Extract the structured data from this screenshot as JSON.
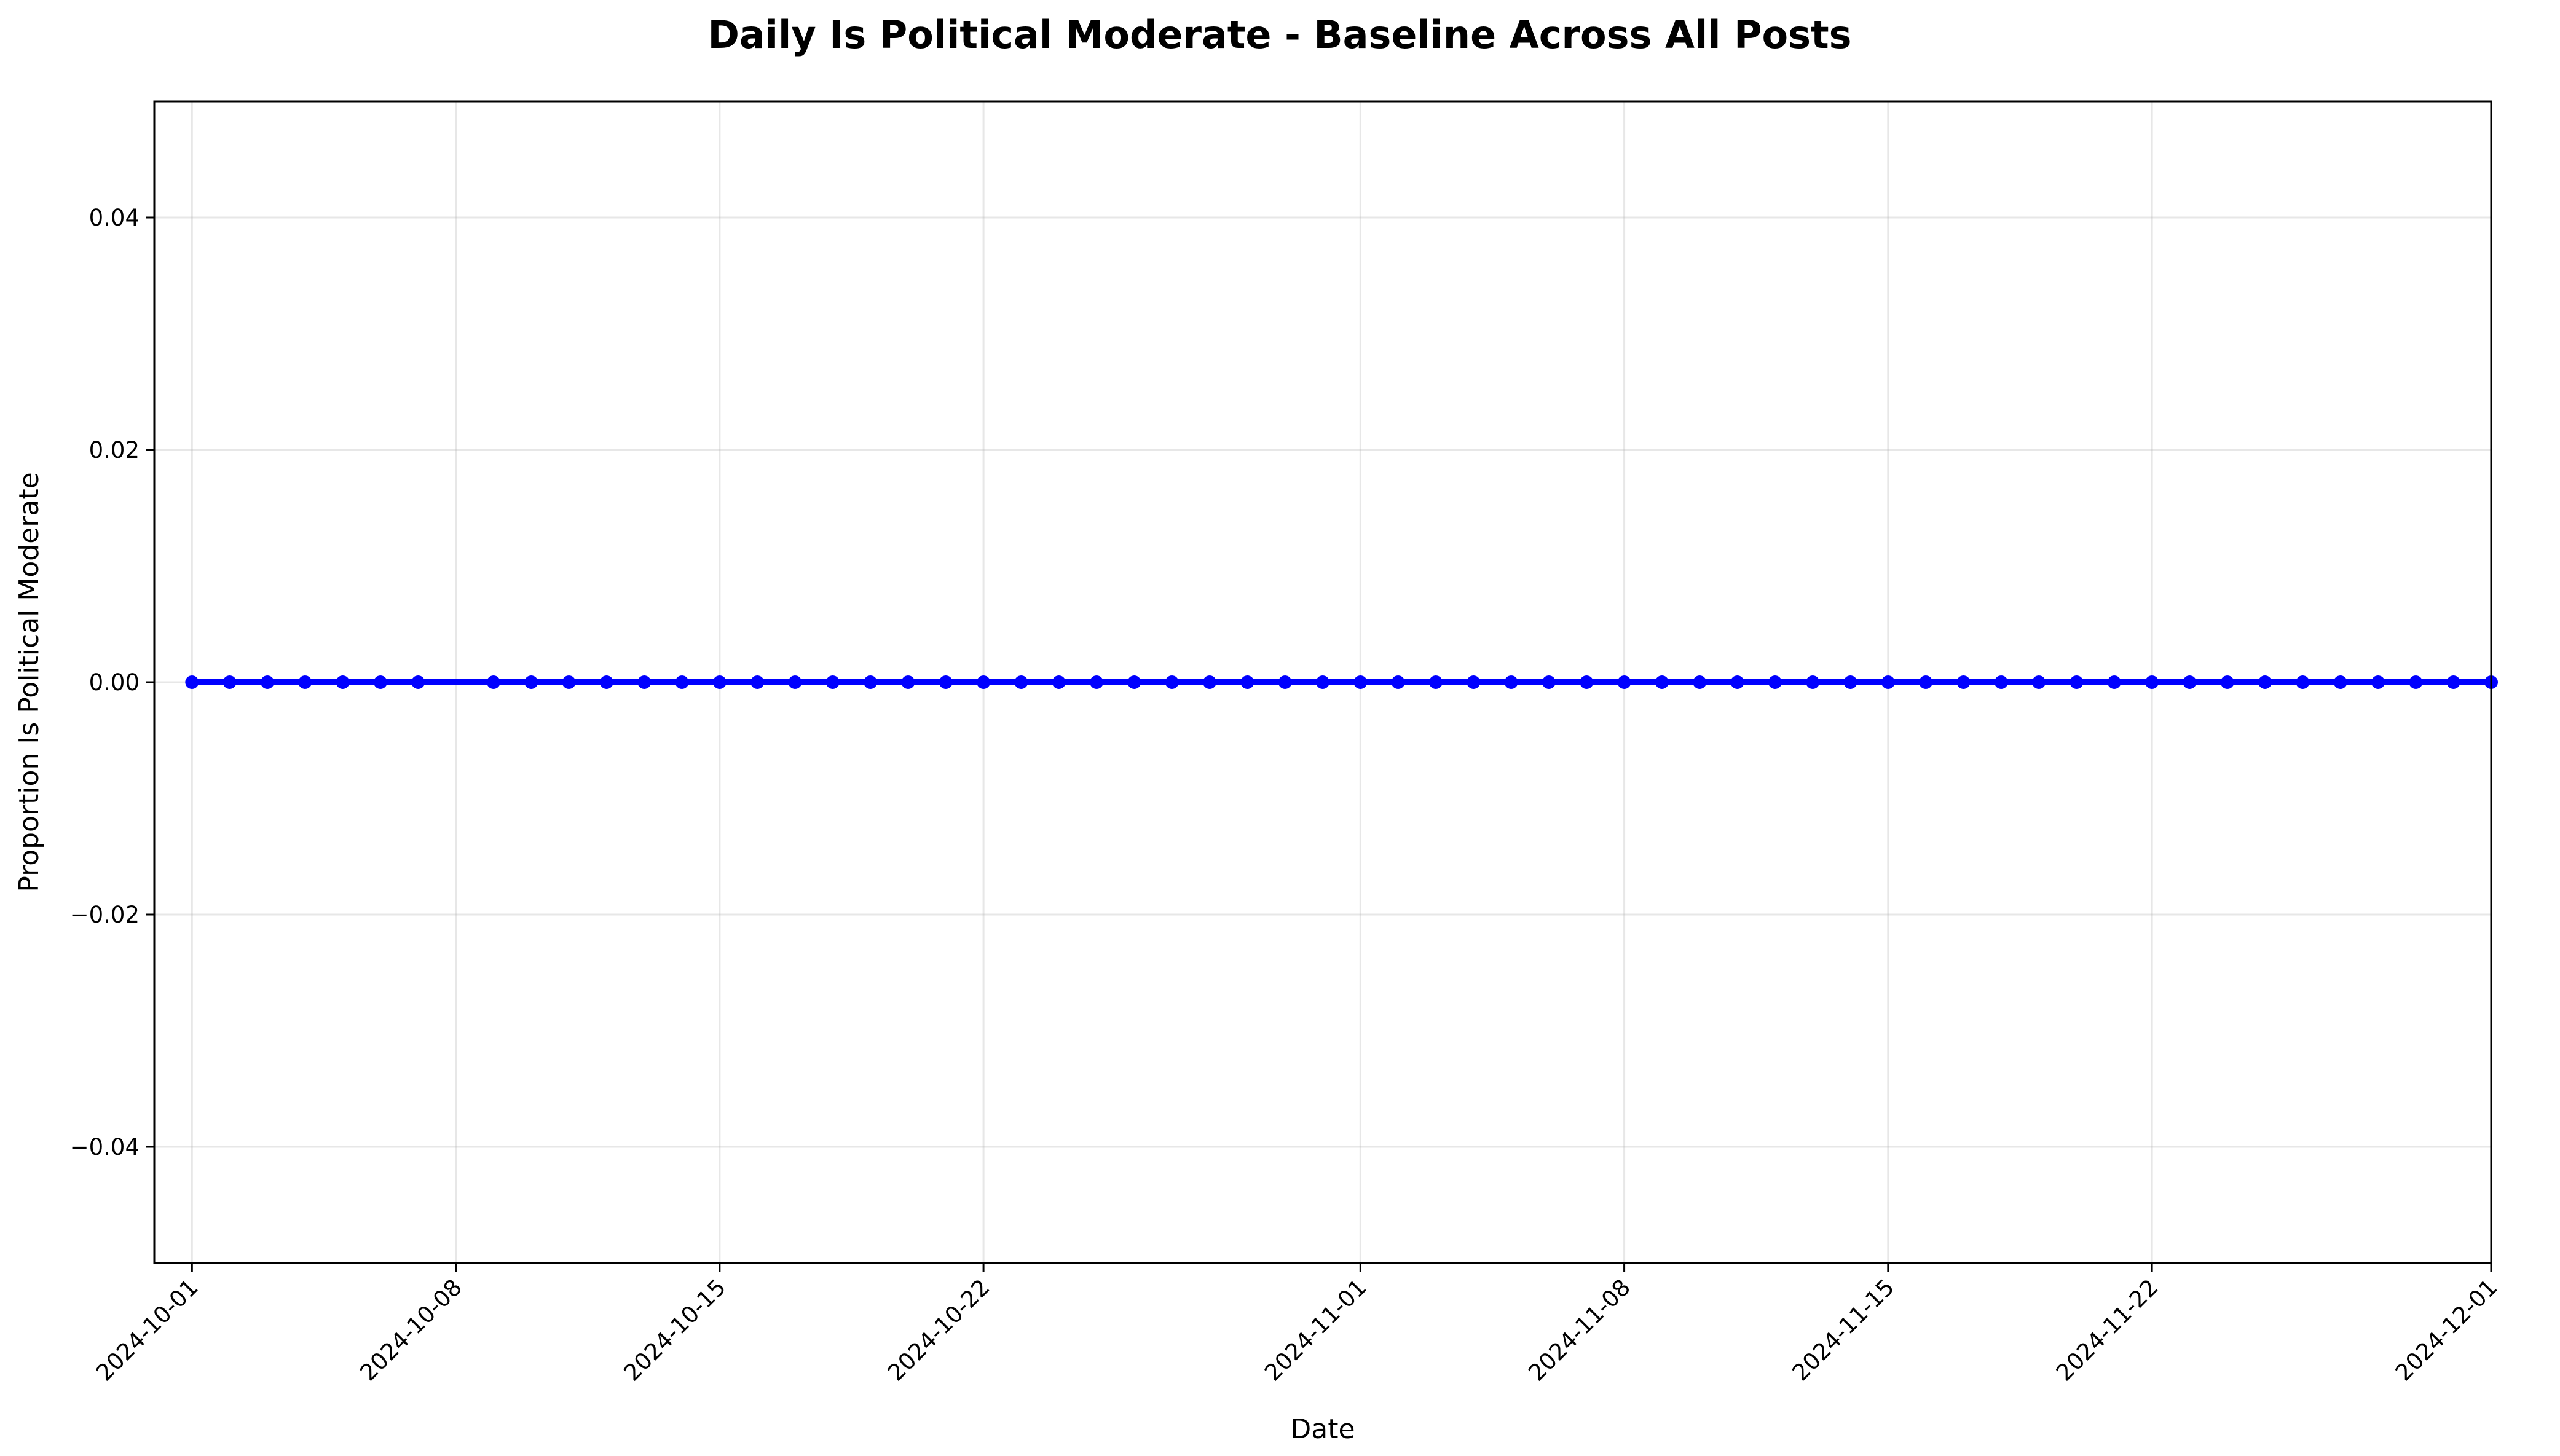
{
  "chart_data": {
    "type": "line",
    "title": "Daily Is Political Moderate - Baseline Across All Posts",
    "xlabel": "Date",
    "ylabel": "Proportion Is Political Moderate",
    "xlim": [
      "2024-09-30",
      "2024-12-01"
    ],
    "ylim": [
      -0.05,
      0.05
    ],
    "x_tick_labels": [
      "2024-10-01",
      "2024-10-08",
      "2024-10-15",
      "2024-10-22",
      "2024-11-01",
      "2024-11-08",
      "2024-11-15",
      "2024-11-22",
      "2024-12-01"
    ],
    "y_tick_values": [
      -0.04,
      -0.02,
      0.0,
      0.02,
      0.04
    ],
    "y_tick_labels": [
      "−0.04",
      "−0.02",
      "0.00",
      "0.02",
      "0.04"
    ],
    "grid": true,
    "series_color": "#0000ff",
    "series": [
      {
        "x": [
          "2024-10-01",
          "2024-10-02",
          "2024-10-03",
          "2024-10-04",
          "2024-10-05",
          "2024-10-06",
          "2024-10-07",
          "2024-10-09",
          "2024-10-10",
          "2024-10-11",
          "2024-10-12",
          "2024-10-13",
          "2024-10-14",
          "2024-10-15",
          "2024-10-16",
          "2024-10-17",
          "2024-10-18",
          "2024-10-19",
          "2024-10-20",
          "2024-10-21",
          "2024-10-22",
          "2024-10-23",
          "2024-10-24",
          "2024-10-25",
          "2024-10-26",
          "2024-10-27",
          "2024-10-28",
          "2024-10-29",
          "2024-10-30",
          "2024-10-31",
          "2024-11-01",
          "2024-11-02",
          "2024-11-03",
          "2024-11-04",
          "2024-11-05",
          "2024-11-06",
          "2024-11-07",
          "2024-11-08",
          "2024-11-09",
          "2024-11-10",
          "2024-11-11",
          "2024-11-12",
          "2024-11-13",
          "2024-11-14",
          "2024-11-15",
          "2024-11-16",
          "2024-11-17",
          "2024-11-18",
          "2024-11-19",
          "2024-11-20",
          "2024-11-21",
          "2024-11-22",
          "2024-11-23",
          "2024-11-24",
          "2024-11-25",
          "2024-11-26",
          "2024-11-27",
          "2024-11-28",
          "2024-11-29",
          "2024-11-30",
          "2024-12-01"
        ],
        "values": [
          0,
          0,
          0,
          0,
          0,
          0,
          0,
          0,
          0,
          0,
          0,
          0,
          0,
          0,
          0,
          0,
          0,
          0,
          0,
          0,
          0,
          0,
          0,
          0,
          0,
          0,
          0,
          0,
          0,
          0,
          0,
          0,
          0,
          0,
          0,
          0,
          0,
          0,
          0,
          0,
          0,
          0,
          0,
          0,
          0,
          0,
          0,
          0,
          0,
          0,
          0,
          0,
          0,
          0,
          0,
          0,
          0,
          0,
          0,
          0,
          0
        ]
      }
    ]
  }
}
